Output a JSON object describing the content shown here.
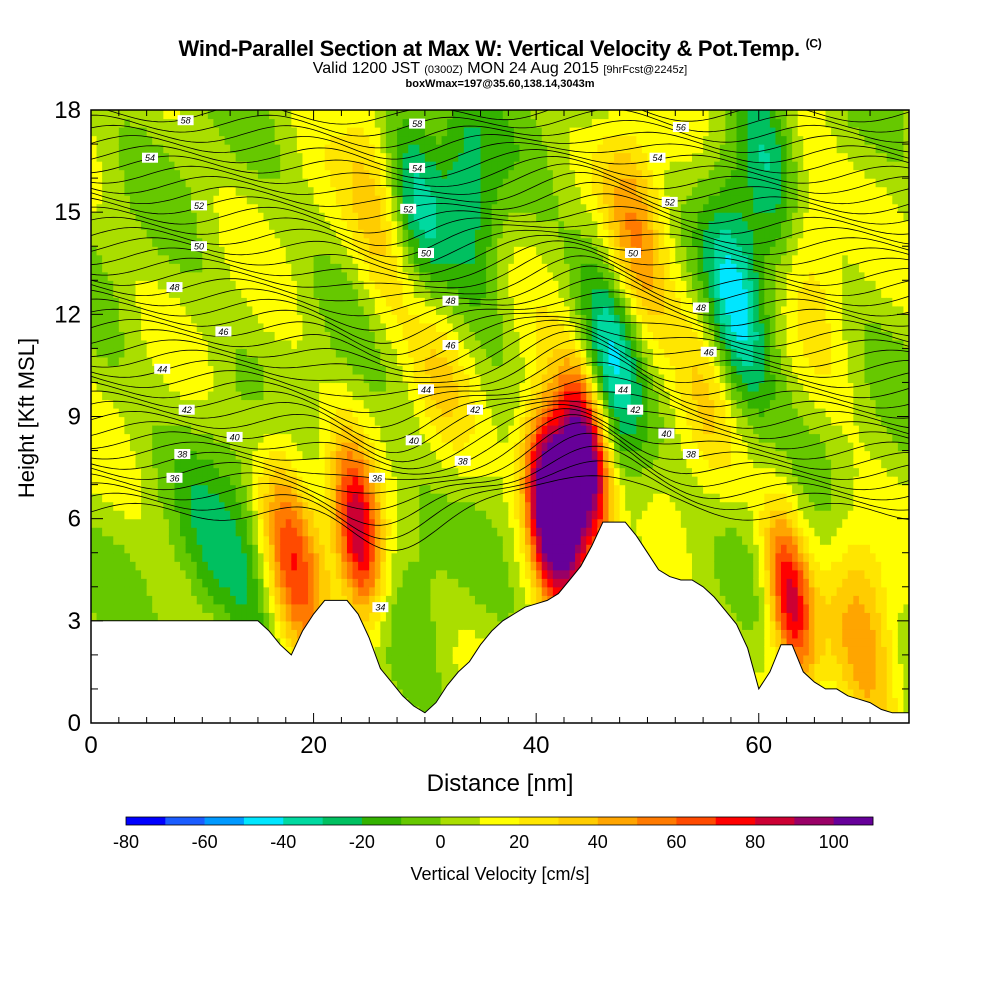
{
  "title": {
    "main": "Wind-Parallel Section at Max W: Vertical Velocity & Pot.Temp.",
    "main_suffix": "(C)",
    "valid_prefix": "Valid 1200 JST",
    "valid_zulu": "(0300Z)",
    "valid_date": "MON 24 Aug 2015",
    "forecast": "[9hrFcst@2245z]",
    "boxwmax": "boxWmax=197@35.60,138.14,3043m"
  },
  "chart_data": {
    "type": "heatmap",
    "xlabel": "Distance [nm]",
    "ylabel": "Height [Kft MSL]",
    "xlim": [
      0,
      73.5
    ],
    "ylim": [
      0,
      18
    ],
    "x_ticks": [
      0,
      20,
      40,
      60
    ],
    "y_ticks": [
      0,
      3,
      6,
      9,
      12,
      15,
      18
    ],
    "colorbar": {
      "label": "Vertical Velocity [cm/s]",
      "range": [
        -80,
        110
      ],
      "step": 10,
      "tick_values": [
        -80,
        -60,
        -40,
        -20,
        0,
        20,
        40,
        60,
        80,
        100
      ],
      "colors": [
        "#0000ff",
        "#1a5cff",
        "#0099ff",
        "#00e6ff",
        "#00d9a0",
        "#00c060",
        "#33b200",
        "#66c800",
        "#aade00",
        "#ffff00",
        "#ffe600",
        "#ffcc00",
        "#ffa500",
        "#ff7a00",
        "#ff4a00",
        "#ff0000",
        "#cc0033",
        "#990066",
        "#660099"
      ]
    },
    "terrain": [
      [
        0,
        3
      ],
      [
        5,
        3
      ],
      [
        10,
        3
      ],
      [
        15,
        3
      ],
      [
        16,
        2.7
      ],
      [
        17,
        2.3
      ],
      [
        18,
        2
      ],
      [
        19,
        2.7
      ],
      [
        20,
        3.2
      ],
      [
        21,
        3.6
      ],
      [
        23,
        3.6
      ],
      [
        24,
        3.2
      ],
      [
        25,
        2.5
      ],
      [
        26,
        1.6
      ],
      [
        27,
        1.2
      ],
      [
        28,
        0.8
      ],
      [
        29,
        0.5
      ],
      [
        30,
        0.3
      ],
      [
        31,
        0.6
      ],
      [
        32,
        1.1
      ],
      [
        33,
        1.5
      ],
      [
        34,
        1.8
      ],
      [
        35,
        2.3
      ],
      [
        36,
        2.7
      ],
      [
        37,
        3
      ],
      [
        38,
        3.2
      ],
      [
        39,
        3.4
      ],
      [
        40,
        3.5
      ],
      [
        41,
        3.6
      ],
      [
        42,
        3.8
      ],
      [
        43,
        4.2
      ],
      [
        44,
        4.6
      ],
      [
        45,
        5.2
      ],
      [
        46,
        5.9
      ],
      [
        47,
        5.9
      ],
      [
        48,
        5.9
      ],
      [
        49,
        5.5
      ],
      [
        50,
        5.0
      ],
      [
        51,
        4.5
      ],
      [
        52,
        4.3
      ],
      [
        53,
        4.2
      ],
      [
        54,
        4.2
      ],
      [
        55,
        4.0
      ],
      [
        56,
        3.7
      ],
      [
        57,
        3.3
      ],
      [
        58,
        2.9
      ],
      [
        59,
        2.2
      ],
      [
        60,
        1.0
      ],
      [
        61,
        1.5
      ],
      [
        62,
        2.3
      ],
      [
        63,
        2.3
      ],
      [
        64,
        1.5
      ],
      [
        65,
        1.2
      ],
      [
        66,
        1.0
      ],
      [
        67,
        1.0
      ],
      [
        68,
        0.8
      ],
      [
        69,
        0.7
      ],
      [
        70,
        0.6
      ],
      [
        71,
        0.4
      ],
      [
        72,
        0.3
      ],
      [
        73.5,
        0.3
      ]
    ],
    "velocity_features": [
      {
        "x": 18,
        "y": 4.8,
        "value": 55
      },
      {
        "x": 24,
        "y": 5.5,
        "value": 85
      },
      {
        "x": 41,
        "y": 6.2,
        "value": 100
      },
      {
        "x": 44.5,
        "y": 7.8,
        "value": 110
      },
      {
        "x": 42.5,
        "y": 6.8,
        "value": 90
      },
      {
        "x": 62.8,
        "y": 3.6,
        "value": 80
      },
      {
        "x": 69.5,
        "y": 2.8,
        "value": 35
      },
      {
        "x": 14.5,
        "y": 4.2,
        "value": -25
      },
      {
        "x": 10.5,
        "y": 5.0,
        "value": -15
      },
      {
        "x": 29,
        "y": 5.5,
        "value": -10
      },
      {
        "x": 47,
        "y": 10.4,
        "value": -40
      },
      {
        "x": 29,
        "y": 15.5,
        "value": -35
      },
      {
        "x": 34,
        "y": 15.8,
        "value": -30
      },
      {
        "x": 58,
        "y": 12.3,
        "value": -45
      },
      {
        "x": 61,
        "y": 16.5,
        "value": -30
      },
      {
        "x": 49,
        "y": 14.2,
        "value": 40
      },
      {
        "x": 26,
        "y": 15.0,
        "value": 30
      },
      {
        "x": 64,
        "y": 15.0,
        "value": 25
      },
      {
        "x": 31,
        "y": 10.5,
        "value": 20
      },
      {
        "x": 55,
        "y": 10.0,
        "value": 20
      }
    ],
    "isentrope_labels": [
      {
        "value": "58",
        "x": 8.5,
        "y": 17.7
      },
      {
        "value": "54",
        "x": 5.3,
        "y": 16.6
      },
      {
        "value": "52",
        "x": 9.7,
        "y": 15.2
      },
      {
        "value": "50",
        "x": 9.7,
        "y": 14.0
      },
      {
        "value": "48",
        "x": 7.5,
        "y": 12.8
      },
      {
        "value": "46",
        "x": 11.9,
        "y": 11.5
      },
      {
        "value": "44",
        "x": 6.4,
        "y": 10.4
      },
      {
        "value": "42",
        "x": 8.6,
        "y": 9.2
      },
      {
        "value": "40",
        "x": 12.9,
        "y": 8.4
      },
      {
        "value": "38",
        "x": 8.2,
        "y": 7.9
      },
      {
        "value": "36",
        "x": 7.5,
        "y": 7.2
      },
      {
        "value": "36",
        "x": 25.7,
        "y": 7.2
      },
      {
        "value": "34",
        "x": 26.0,
        "y": 3.4
      },
      {
        "value": "58",
        "x": 29.3,
        "y": 17.6
      },
      {
        "value": "54",
        "x": 29.3,
        "y": 16.3
      },
      {
        "value": "52",
        "x": 28.5,
        "y": 15.1
      },
      {
        "value": "50",
        "x": 30.1,
        "y": 13.8
      },
      {
        "value": "48",
        "x": 32.3,
        "y": 12.4
      },
      {
        "value": "46",
        "x": 32.3,
        "y": 11.1
      },
      {
        "value": "44",
        "x": 30.1,
        "y": 9.8
      },
      {
        "value": "42",
        "x": 34.5,
        "y": 9.2
      },
      {
        "value": "40",
        "x": 29.0,
        "y": 8.3
      },
      {
        "value": "38",
        "x": 33.4,
        "y": 7.7
      },
      {
        "value": "44",
        "x": 47.8,
        "y": 9.8
      },
      {
        "value": "42",
        "x": 48.9,
        "y": 9.2
      },
      {
        "value": "40",
        "x": 51.7,
        "y": 8.5
      },
      {
        "value": "38",
        "x": 53.9,
        "y": 7.9
      },
      {
        "value": "56",
        "x": 53.0,
        "y": 17.5
      },
      {
        "value": "54",
        "x": 50.9,
        "y": 16.6
      },
      {
        "value": "52",
        "x": 52.0,
        "y": 15.3
      },
      {
        "value": "50",
        "x": 48.7,
        "y": 13.8
      },
      {
        "value": "48",
        "x": 54.8,
        "y": 12.2
      },
      {
        "value": "46",
        "x": 55.5,
        "y": 10.9
      }
    ]
  }
}
